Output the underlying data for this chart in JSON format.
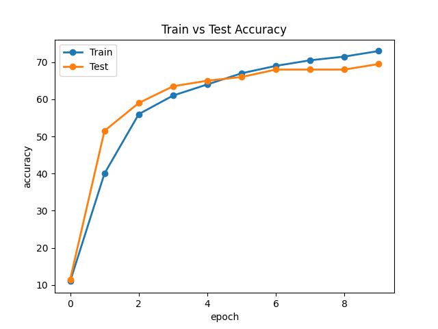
{
  "title": "Train vs Test Accuracy",
  "xlabel": "epoch",
  "ylabel": "accuracy",
  "epochs": [
    0,
    1,
    2,
    3,
    4,
    5,
    6,
    7,
    8,
    9
  ],
  "train_accuracy": [
    11,
    40,
    56,
    61,
    64,
    67,
    69,
    70.5,
    71.5,
    73
  ],
  "test_accuracy": [
    11.5,
    51.5,
    59,
    63.5,
    65,
    66,
    68,
    68,
    68,
    69.5
  ],
  "train_color": "#1f77b4",
  "test_color": "#ff7f0e",
  "train_label": "Train",
  "test_label": "Test",
  "marker": "o",
  "linewidth": 2,
  "markersize": 6,
  "figsize": [
    6.4,
    4.8
  ],
  "dpi": 100
}
